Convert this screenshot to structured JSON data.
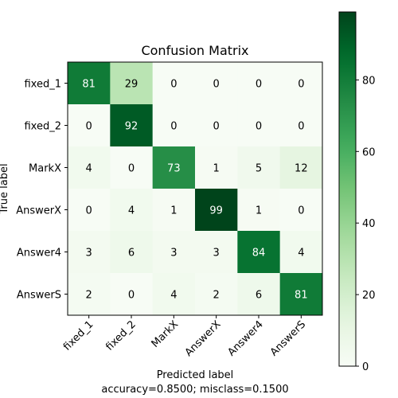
{
  "chart_data": {
    "type": "heatmap",
    "title": "Confusion Matrix",
    "xlabel": "Predicted label",
    "ylabel": "True label",
    "footer": "accuracy=0.8500; misclass=0.1500",
    "x_categories": [
      "fixed_1",
      "fixed_2",
      "MarkX",
      "AnswerX",
      "Answer4",
      "AnswerS"
    ],
    "y_categories": [
      "fixed_1",
      "fixed_2",
      "MarkX",
      "AnswerX",
      "Answer4",
      "AnswerS"
    ],
    "values": [
      [
        81,
        29,
        0,
        0,
        0,
        0
      ],
      [
        0,
        92,
        0,
        0,
        0,
        0
      ],
      [
        4,
        0,
        73,
        1,
        5,
        12
      ],
      [
        0,
        4,
        1,
        99,
        1,
        0
      ],
      [
        3,
        6,
        3,
        3,
        84,
        4
      ],
      [
        2,
        0,
        4,
        2,
        6,
        81
      ]
    ],
    "colormap": "Greens",
    "colorbar": {
      "range": [
        0,
        99
      ],
      "ticks": [
        0,
        20,
        40,
        60,
        80
      ]
    },
    "text_threshold": 49.5,
    "text_color_light": "#ffffff",
    "text_color_dark": "#000000"
  }
}
